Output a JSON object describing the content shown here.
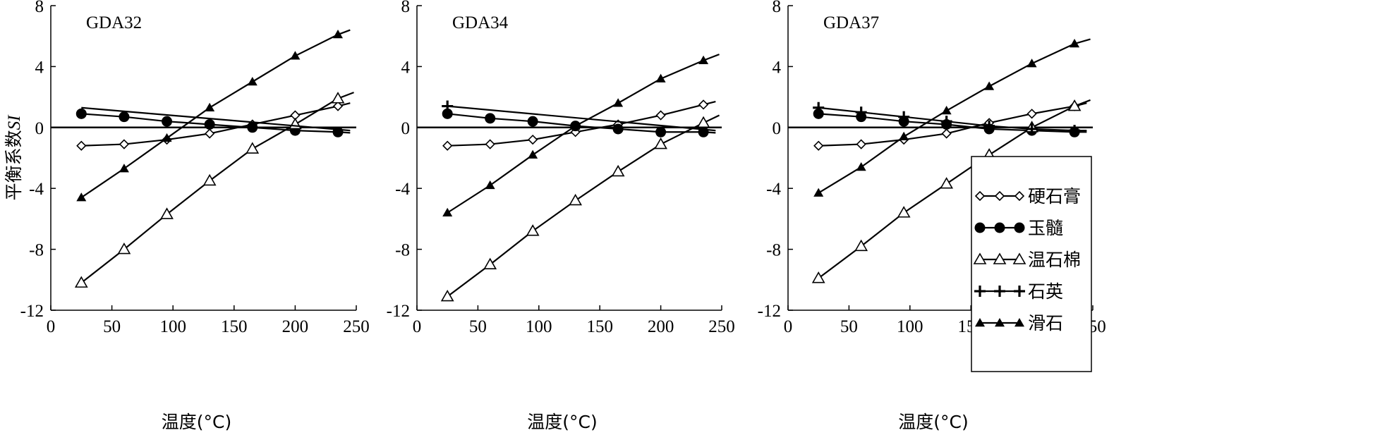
{
  "chart_data": {
    "type": "line",
    "ylabel": "平衡系数SI",
    "ylabel_parts": [
      "平衡系数",
      "SI"
    ],
    "xlabel": "温度(°C)",
    "xlim": [
      0,
      250
    ],
    "ylim": [
      -12,
      8
    ],
    "x_ticks": [
      0,
      50,
      100,
      150,
      200,
      250
    ],
    "y_ticks": [
      8,
      4,
      0,
      -4,
      -8,
      -12
    ],
    "legend_position": "bottom-right of third panel",
    "reference_line_y": 0,
    "series_styles": [
      {
        "name": "硬石膏",
        "marker": "diamond-open"
      },
      {
        "name": "玉髓",
        "marker": "circle-filled"
      },
      {
        "name": "温石棉",
        "marker": "triangle-open"
      },
      {
        "name": "石英",
        "marker": "plus"
      },
      {
        "name": "滑石",
        "marker": "triangle-filled"
      }
    ],
    "panels": [
      {
        "title": "GDA32",
        "series": [
          {
            "name": "硬石膏",
            "x": [
              25,
              60,
              95,
              130,
              165,
              200,
              235
            ],
            "values": [
              -1.2,
              -1.1,
              -0.8,
              -0.4,
              0.2,
              0.8,
              1.4
            ],
            "line_end": [
              245,
              1.6
            ]
          },
          {
            "name": "玉髓",
            "x": [
              25,
              60,
              95,
              130,
              165,
              200,
              235
            ],
            "values": [
              0.9,
              0.7,
              0.4,
              0.2,
              0.0,
              -0.2,
              -0.3
            ],
            "line_end": [
              245,
              -0.35
            ]
          },
          {
            "name": "温石棉",
            "x": [
              25,
              60,
              95,
              130,
              165,
              200,
              235
            ],
            "values": [
              -10.2,
              -8.0,
              -5.7,
              -3.5,
              -1.4,
              0.2,
              1.9
            ],
            "line_end": [
              248,
              2.3
            ]
          },
          {
            "name": "石英",
            "x": [
              25,
              245
            ],
            "values": [
              1.3,
              -0.2
            ],
            "markers": false
          },
          {
            "name": "滑石",
            "x": [
              25,
              60,
              95,
              130,
              165,
              200,
              235
            ],
            "values": [
              -4.6,
              -2.7,
              -0.7,
              1.3,
              3.0,
              4.7,
              6.1
            ],
            "line_end": [
              245,
              6.4
            ]
          }
        ]
      },
      {
        "title": "GDA34",
        "series": [
          {
            "name": "硬石膏",
            "x": [
              25,
              60,
              95,
              130,
              165,
              200,
              235
            ],
            "values": [
              -1.2,
              -1.1,
              -0.8,
              -0.3,
              0.2,
              0.8,
              1.5
            ],
            "line_end": [
              245,
              1.7
            ]
          },
          {
            "name": "玉髓",
            "x": [
              25,
              60,
              95,
              130,
              165,
              200,
              235
            ],
            "values": [
              0.9,
              0.6,
              0.4,
              0.1,
              -0.1,
              -0.3,
              -0.3
            ],
            "line_end": [
              245,
              -0.35
            ]
          },
          {
            "name": "温石棉",
            "x": [
              25,
              60,
              95,
              130,
              165,
              200,
              235
            ],
            "values": [
              -11.1,
              -9.0,
              -6.8,
              -4.8,
              -2.9,
              -1.1,
              0.3
            ],
            "line_end": [
              248,
              0.8
            ]
          },
          {
            "name": "石英",
            "x": [
              25,
              245
            ],
            "values": [
              1.4,
              -0.2
            ],
            "markers": [
              25
            ]
          },
          {
            "name": "滑石",
            "x": [
              25,
              60,
              95,
              130,
              165,
              200,
              235
            ],
            "values": [
              -5.6,
              -3.8,
              -1.8,
              0.1,
              1.6,
              3.2,
              4.4
            ],
            "line_end": [
              248,
              4.8
            ]
          }
        ]
      },
      {
        "title": "GDA37",
        "series": [
          {
            "name": "硬石膏",
            "x": [
              25,
              60,
              95,
              130,
              165,
              200,
              235
            ],
            "values": [
              -1.2,
              -1.1,
              -0.8,
              -0.4,
              0.3,
              0.9,
              1.4
            ],
            "line_end": [
              245,
              1.6
            ]
          },
          {
            "name": "玉髓",
            "x": [
              25,
              60,
              95,
              130,
              165,
              200,
              235
            ],
            "values": [
              0.9,
              0.7,
              0.4,
              0.2,
              -0.1,
              -0.2,
              -0.3
            ],
            "line_end": [
              245,
              -0.3
            ]
          },
          {
            "name": "温石棉",
            "x": [
              25,
              60,
              95,
              130,
              165,
              200,
              235
            ],
            "values": [
              -9.9,
              -7.8,
              -5.6,
              -3.7,
              -1.8,
              0.0,
              1.4
            ],
            "line_end": [
              248,
              1.8
            ]
          },
          {
            "name": "石英",
            "x": [
              25,
              60,
              95,
              130,
              165,
              200,
              235
            ],
            "values": [
              1.3,
              1.0,
              0.7,
              0.4,
              0.1,
              -0.1,
              -0.2
            ],
            "line_end": [
              245,
              -0.2
            ]
          },
          {
            "name": "滑石",
            "x": [
              25,
              60,
              95,
              130,
              165,
              200,
              235
            ],
            "values": [
              -4.3,
              -2.6,
              -0.6,
              1.1,
              2.7,
              4.2,
              5.5
            ],
            "line_end": [
              248,
              5.8
            ]
          }
        ]
      }
    ]
  }
}
